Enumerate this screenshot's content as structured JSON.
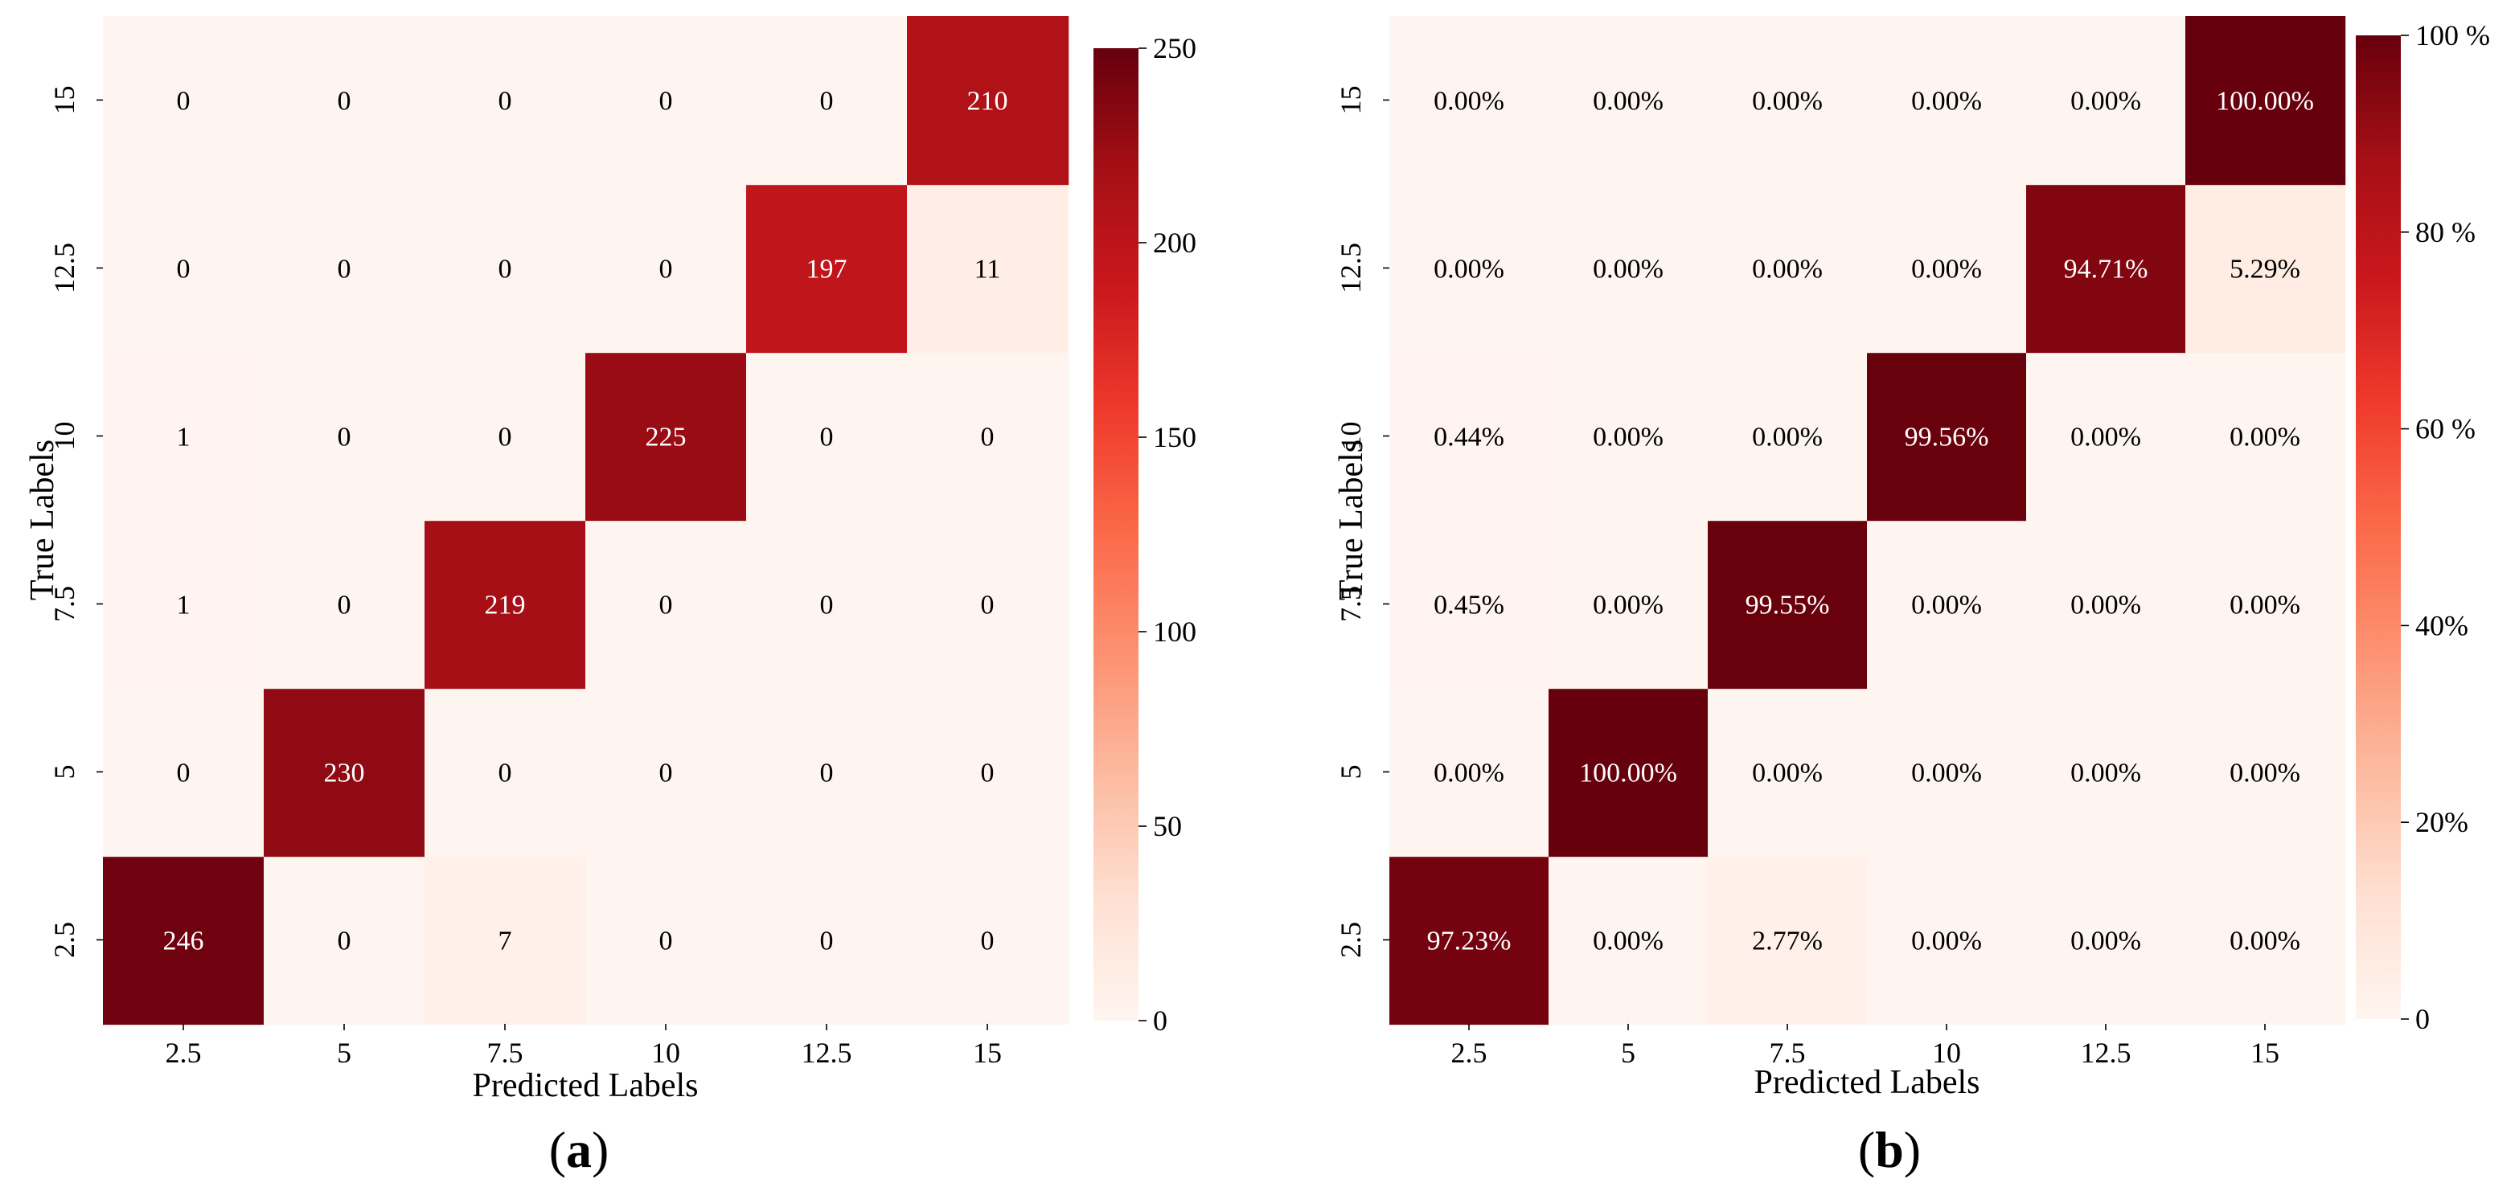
{
  "chart_data": [
    {
      "type": "heatmap",
      "panel_label": "a",
      "title": "",
      "xlabel": "Predicted Labels",
      "ylabel": "True Labels",
      "x_categories": [
        "2.5",
        "5",
        "7.5",
        "10",
        "12.5",
        "15"
      ],
      "y_categories": [
        "2.5",
        "5",
        "7.5",
        "10",
        "12.5",
        "15"
      ],
      "values": [
        [
          246,
          0,
          7,
          0,
          0,
          0
        ],
        [
          0,
          230,
          0,
          0,
          0,
          0
        ],
        [
          1,
          0,
          219,
          0,
          0,
          0
        ],
        [
          1,
          0,
          0,
          225,
          0,
          0
        ],
        [
          0,
          0,
          0,
          0,
          197,
          11
        ],
        [
          0,
          0,
          0,
          0,
          0,
          210
        ]
      ],
      "cell_labels": [
        [
          "246",
          "0",
          "7",
          "0",
          "0",
          "0"
        ],
        [
          "0",
          "230",
          "0",
          "0",
          "0",
          "0"
        ],
        [
          "1",
          "0",
          "219",
          "0",
          "0",
          "0"
        ],
        [
          "1",
          "0",
          "0",
          "225",
          "0",
          "0"
        ],
        [
          "0",
          "0",
          "0",
          "0",
          "197",
          "11"
        ],
        [
          "0",
          "0",
          "0",
          "0",
          "0",
          "210"
        ]
      ],
      "colorbar": {
        "range": [
          0,
          250
        ],
        "tick_values": [
          0,
          50,
          100,
          150,
          200,
          250
        ],
        "tick_labels": [
          "0",
          "50",
          "100",
          "150",
          "200",
          "250"
        ]
      },
      "colormap": "Reds"
    },
    {
      "type": "heatmap",
      "panel_label": "b",
      "title": "",
      "xlabel": "Predicted Labels",
      "ylabel": "True Labels",
      "x_categories": [
        "2.5",
        "5",
        "7.5",
        "10",
        "12.5",
        "15"
      ],
      "y_categories": [
        "2.5",
        "5",
        "7.5",
        "10",
        "12.5",
        "15"
      ],
      "values": [
        [
          97.23,
          0,
          2.77,
          0,
          0,
          0
        ],
        [
          0,
          100,
          0,
          0,
          0,
          0
        ],
        [
          0.45,
          0,
          99.55,
          0,
          0,
          0
        ],
        [
          0.44,
          0,
          0,
          99.56,
          0,
          0
        ],
        [
          0,
          0,
          0,
          0,
          94.71,
          5.29
        ],
        [
          0,
          0,
          0,
          0,
          0,
          100
        ]
      ],
      "cell_labels": [
        [
          "97.23%",
          "0.00%",
          "2.77%",
          "0.00%",
          "0.00%",
          "0.00%"
        ],
        [
          "0.00%",
          "100.00%",
          "0.00%",
          "0.00%",
          "0.00%",
          "0.00%"
        ],
        [
          "0.45%",
          "0.00%",
          "99.55%",
          "0.00%",
          "0.00%",
          "0.00%"
        ],
        [
          "0.44%",
          "0.00%",
          "0.00%",
          "99.56%",
          "0.00%",
          "0.00%"
        ],
        [
          "0.00%",
          "0.00%",
          "0.00%",
          "0.00%",
          "94.71%",
          "5.29%"
        ],
        [
          "0.00%",
          "0.00%",
          "0.00%",
          "0.00%",
          "0.00%",
          "100.00%"
        ]
      ],
      "colorbar": {
        "range": [
          0,
          100
        ],
        "tick_values": [
          0,
          20,
          40,
          60,
          80,
          100
        ],
        "tick_labels": [
          "0",
          "20%",
          "40%",
          "60 %",
          "80 %",
          "100 %"
        ]
      },
      "colormap": "Reds"
    }
  ]
}
